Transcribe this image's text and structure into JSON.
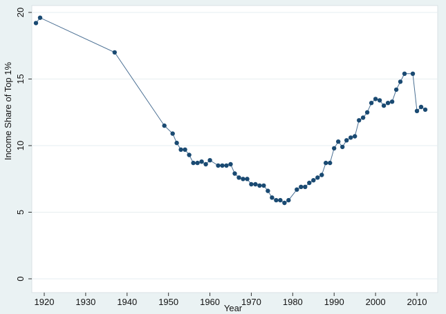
{
  "chart_data": {
    "type": "line",
    "title": "",
    "xlabel": "Year",
    "ylabel": "Income Share of Top 1%",
    "xlim": [
      1916,
      2014
    ],
    "ylim": [
      0,
      20
    ],
    "xticks": [
      "1920",
      "1930",
      "1940",
      "1950",
      "1960",
      "1970",
      "1980",
      "1990",
      "2000",
      "2010"
    ],
    "yticks": [
      "0",
      "5",
      "10",
      "15",
      "20"
    ],
    "grid": true,
    "legend": "none",
    "colors": {
      "plot_bg": "#ffffff",
      "outer_bg": "#eaf2f3",
      "grid": "#e6eef0",
      "line": "#4a6f93",
      "marker": "#1a4a72"
    },
    "series": [
      {
        "x": [
          1918,
          1919,
          1937,
          1949,
          1951,
          1952,
          1953,
          1954,
          1955,
          1956,
          1957,
          1958,
          1959,
          1960,
          1962,
          1963,
          1964,
          1965,
          1966,
          1967,
          1968,
          1969,
          1970,
          1971,
          1972,
          1973,
          1974,
          1975,
          1976,
          1977,
          1978,
          1979,
          1981,
          1982,
          1983,
          1984,
          1985,
          1986,
          1987,
          1988,
          1989,
          1990,
          1991,
          1992,
          1993,
          1994,
          1995,
          1996,
          1997,
          1998,
          1999,
          2000,
          2001,
          2002,
          2003,
          2004,
          2005,
          2006,
          2007,
          2009,
          2010,
          2011,
          2012
        ],
        "y": [
          19.2,
          19.6,
          17.0,
          11.5,
          10.9,
          10.2,
          9.7,
          9.7,
          9.3,
          8.7,
          8.7,
          8.8,
          8.6,
          8.9,
          8.5,
          8.5,
          8.5,
          8.6,
          7.9,
          7.6,
          7.5,
          7.5,
          7.1,
          7.1,
          7.0,
          7.0,
          6.6,
          6.1,
          5.9,
          5.9,
          5.7,
          5.9,
          6.7,
          6.9,
          6.9,
          7.2,
          7.4,
          7.6,
          7.8,
          8.7,
          8.7,
          9.8,
          10.3,
          9.9,
          10.4,
          10.6,
          10.7,
          11.9,
          12.1,
          12.5,
          13.2,
          13.5,
          13.4,
          13.0,
          13.2,
          13.3,
          14.2,
          14.8,
          15.4,
          15.4,
          12.6,
          12.9,
          12.7
        ]
      }
    ]
  }
}
